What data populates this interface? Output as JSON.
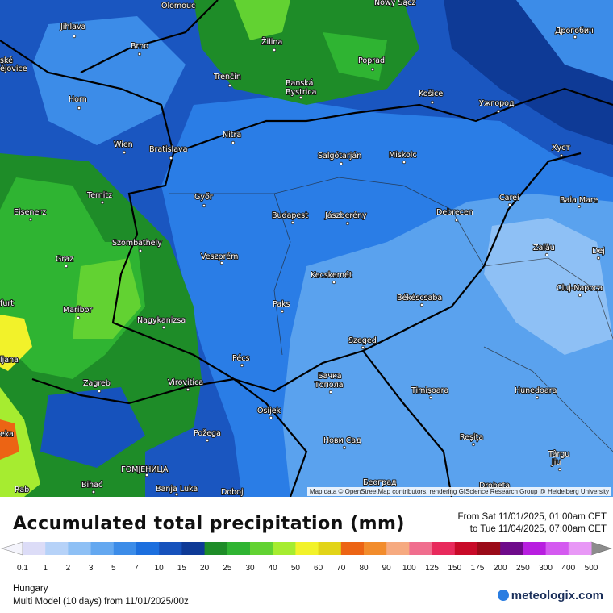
{
  "map": {
    "cities": [
      "Olomouc",
      "Nowy Sącz",
      "Jihlava",
      "Brno",
      "Žilina",
      "Poprad",
      "Дрогобич",
      "ské",
      "ějovice",
      "Trenčín",
      "Banská",
      "Bystrica",
      "Košice",
      "Ужгород",
      "Horn",
      "Nitra",
      "Wien",
      "Bratislava",
      "Salgótarján",
      "Miskolc",
      "Хуст",
      "Ternitz",
      "Győr",
      "Carei",
      "Baia Mare",
      "Eisenerz",
      "Budapest",
      "Jászberény",
      "Debrecen",
      "Szombathely",
      "Zalău",
      "Dej",
      "Graz",
      "Veszprém",
      "Kecskemét",
      "Cluj-Napoca",
      "furt",
      "Maribor",
      "Paks",
      "Békéscsaba",
      "Nagykanizsa",
      "Szeged",
      "ljana",
      "Pécs",
      "Virovitica",
      "Zagreb",
      "Бачка",
      "Топола",
      "Timișoara",
      "Hunedoara",
      "Osijek",
      "eka",
      "Požega",
      "Нови Сад",
      "Reșița",
      "Târgu",
      "Jiu",
      "ГОМЈЕНИЦА",
      "Bihać",
      "Banja Luka",
      "Doboj",
      "Београд",
      "Drobeta",
      "Rab"
    ],
    "attribution": "Map data © OpenStreetMap contributors, rendering GIScience Research Group @ Heidelberg University"
  },
  "header": {
    "title": "Accumulated total precipitation (mm)",
    "from": "From Sat 11/01/2025, 01:00am CET",
    "to": "to Tue 11/04/2025, 07:00am CET"
  },
  "legend": {
    "values": [
      0.1,
      1,
      2,
      3,
      5,
      7,
      10,
      15,
      20,
      25,
      30,
      40,
      50,
      60,
      70,
      80,
      90,
      100,
      125,
      150,
      175,
      200,
      250,
      300,
      400,
      500
    ],
    "colors": [
      "#dcdcf7",
      "#b6d2f8",
      "#8ec0f5",
      "#64a8f0",
      "#3c8ce8",
      "#1c6fde",
      "#1652bc",
      "#0e3a96",
      "#1e8c28",
      "#2fb432",
      "#62d232",
      "#a6ec30",
      "#f2f22a",
      "#e2d418",
      "#ec6414",
      "#f28c2c",
      "#f6aa80",
      "#f06e8e",
      "#e82a5c",
      "#c80a28",
      "#9a0a18",
      "#6e0a8a",
      "#b81ee0",
      "#d45af0",
      "#e898f6"
    ],
    "extra_colors": [
      "#f2d2fa",
      "#faeafc",
      "#d2d2d2"
    ],
    "under_color": "#f4f4fc",
    "over_color": "#8c8c8c"
  },
  "footer": {
    "region": "Hungary",
    "model": "Multi Model (10 days) from 11/01/2025/00z",
    "brand": "meteologix.com"
  }
}
